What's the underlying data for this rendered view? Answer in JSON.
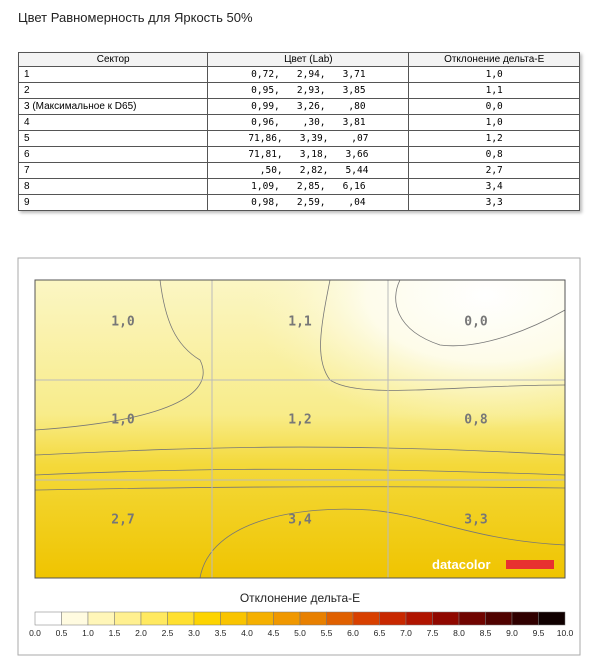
{
  "header": {
    "title": "Цвет Равномерность для Яркость 50%"
  },
  "table": {
    "columns": [
      "Сектор",
      "Цвет (Lab)",
      "Отклонение дельта-E"
    ],
    "rows": [
      [
        "1",
        "0,72,   2,94,   3,71",
        "1,0"
      ],
      [
        "2",
        "0,95,   2,93,   3,85",
        "1,1"
      ],
      [
        "3 (Максимальное к D65)",
        "0,99,   3,26,    ,80",
        "0,0"
      ],
      [
        "4",
        "0,96,    ,30,   3,81",
        "1,0"
      ],
      [
        "5",
        "71,86,   3,39,    ,07",
        "1,2"
      ],
      [
        "6",
        "71,81,   3,18,   3,66",
        "0,8"
      ],
      [
        "7",
        "  ,50,   2,82,   5,44",
        "2,7"
      ],
      [
        "8",
        "1,09,   2,85,   6,16",
        "3,4"
      ],
      [
        "9",
        "0,98,   2,59,    ,04",
        "3,3"
      ]
    ]
  },
  "heatmap": {
    "labels": [
      [
        "1,0",
        "1,1",
        "0,0"
      ],
      [
        "1,0",
        "1,2",
        "0,8"
      ],
      [
        "2,7",
        "3,4",
        "3,3"
      ]
    ],
    "logo": "datacolor",
    "legend": {
      "title": "Отклонение дельта-E",
      "ticks": [
        "0.0",
        "0.5",
        "1.0",
        "1.5",
        "2.0",
        "2.5",
        "3.0",
        "3.5",
        "4.0",
        "4.5",
        "5.0",
        "5.5",
        "6.0",
        "6.5",
        "7.0",
        "7.5",
        "8.0",
        "8.5",
        "9.0",
        "9.5",
        "10.0"
      ]
    }
  }
}
